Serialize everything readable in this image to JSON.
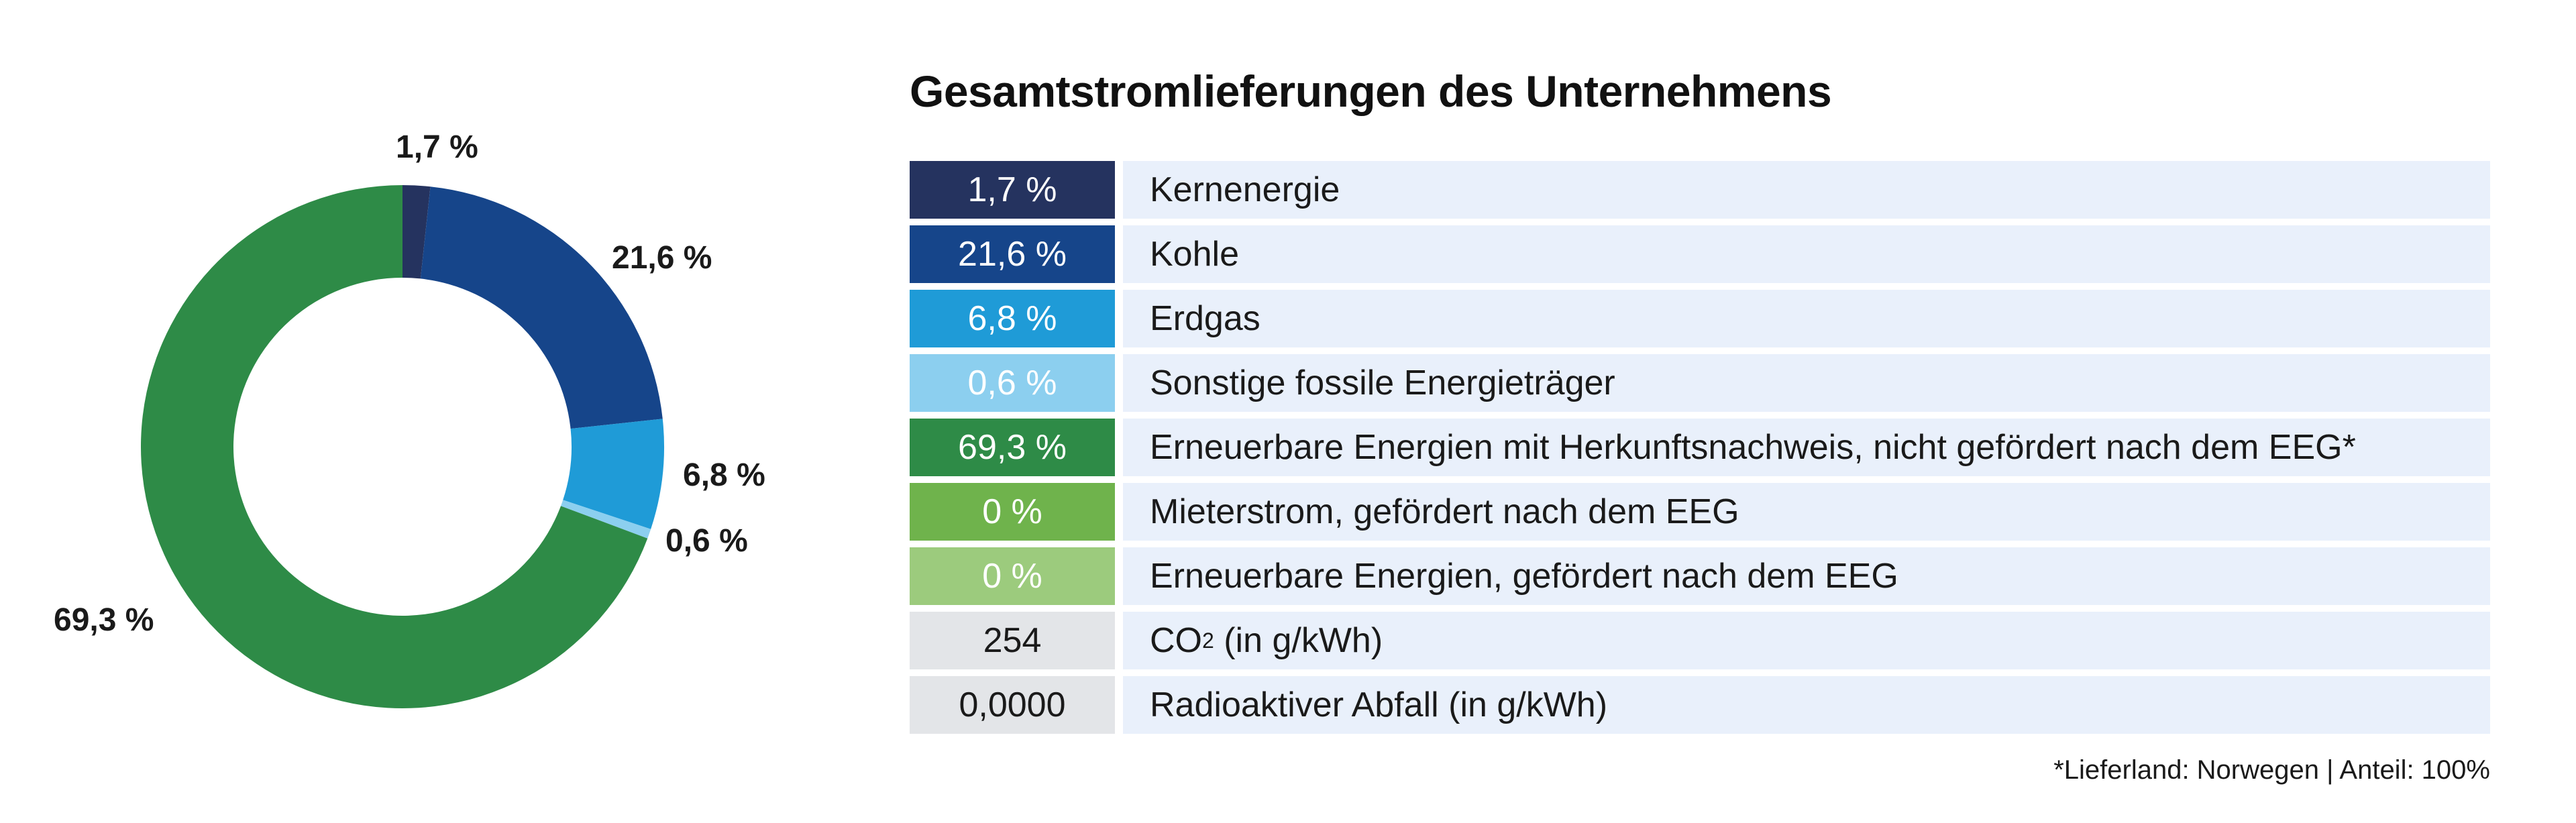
{
  "chart_data": {
    "type": "pie",
    "title": "Gesamtstromlieferungen des Unternehmens",
    "slices": [
      {
        "name": "Kernenergie",
        "value": 1.7,
        "label": "1,7 %",
        "color": "#25335f"
      },
      {
        "name": "Kohle",
        "value": 21.6,
        "label": "21,6 %",
        "color": "#16458a"
      },
      {
        "name": "Erdgas",
        "value": 6.8,
        "label": "6,8 %",
        "color": "#1f9bd7"
      },
      {
        "name": "Sonstige fossile Energieträger",
        "value": 0.6,
        "label": "0,6 %",
        "color": "#8ccfef"
      },
      {
        "name": "Erneuerbare Energien mit Herkunftsnachweis, nicht gefördert nach dem EEG*",
        "value": 69.3,
        "label": "69,3 %",
        "color": "#2e8b47"
      },
      {
        "name": "Mieterstrom, gefördert nach dem EEG",
        "value": 0,
        "label": "0 %",
        "color": "#6fb34c"
      },
      {
        "name": "Erneuerbare Energien, gefördert nach dem EEG",
        "value": 0,
        "label": "0 %",
        "color": "#9ccb7d"
      }
    ],
    "extra_rows": [
      {
        "value": "254",
        "label_main": "CO",
        "label_sub": "2",
        "label_rest": " (in g/kWh)",
        "color": "#e3e5e8"
      },
      {
        "value": "0,0000",
        "label": "Radioaktiver Abfall (in g/kWh)",
        "color": "#e3e5e8"
      }
    ],
    "footnote": "*Lieferland: Norwegen | Anteil: 100%"
  }
}
